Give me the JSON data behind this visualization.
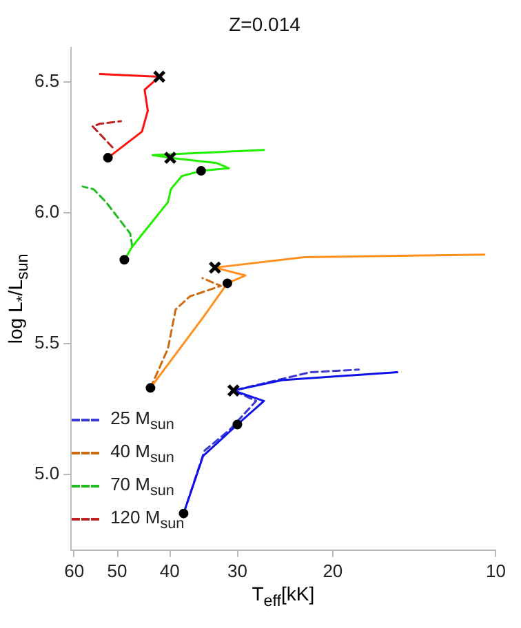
{
  "chart_data": {
    "type": "line",
    "title": "Z=0.014",
    "xlabel": "T$_{eff}$[kK]",
    "ylabel": "log L$_{*}$/L$_{sun}$",
    "log": "x",
    "xlim": [
      61,
      10
    ],
    "xticks": [
      60,
      50,
      40,
      30,
      20,
      10
    ],
    "ylim": [
      4.71,
      6.63
    ],
    "yticks": [
      {
        "value": 5,
        "label": "5.0"
      },
      {
        "value": 5.5,
        "label": "5.5"
      },
      {
        "value": 6,
        "label": "6.0"
      },
      {
        "value": 6.5,
        "label": "6.5"
      }
    ],
    "grid": false,
    "legend": "bottom left",
    "marker": "none",
    "series": [
      {
        "type": "line",
        "color": "#1010e8",
        "line_style": "solid",
        "x": [
          37.7,
          34.7,
          30.0,
          26.8,
          30.5,
          24.8,
          15.2
        ],
        "values": [
          4.85,
          5.07,
          5.19,
          5.28,
          5.32,
          5.36,
          5.39
        ]
      },
      {
        "type": "line",
        "color": "#ff9020",
        "line_style": "solid",
        "x": [
          43.4,
          34.7,
          31.3,
          29.0,
          33.0,
          22.6,
          10.5
        ],
        "values": [
          5.33,
          5.6,
          5.73,
          5.76,
          5.79,
          5.83,
          5.84
        ]
      },
      {
        "type": "line",
        "color": "#22ee00",
        "line_style": "solid",
        "x": [
          48.5,
          46.9,
          40.3,
          39.8,
          38.0,
          35.0,
          31.1,
          32.8,
          39.9,
          43.0,
          26.8
        ],
        "values": [
          5.82,
          5.87,
          6.04,
          6.09,
          6.14,
          6.16,
          6.17,
          6.19,
          6.21,
          6.22,
          6.24
        ]
      },
      {
        "type": "line",
        "color": "#ff1010",
        "line_style": "solid",
        "x": [
          52.0,
          45.0,
          43.9,
          44.5,
          41.8,
          53.8
        ],
        "values": [
          6.21,
          6.31,
          6.39,
          6.47,
          6.52,
          6.53
        ]
      },
      {
        "type": "line",
        "name": "25 M$_{sun}$",
        "color": "#3a3ad0",
        "line_style": "dashed",
        "x": [
          37.7,
          34.5,
          31.0,
          27.7,
          30.5,
          22.0,
          17.9
        ],
        "values": [
          4.85,
          5.09,
          5.17,
          5.28,
          5.32,
          5.39,
          5.4
        ]
      },
      {
        "type": "line",
        "name": "40 M$_{sun}$",
        "color": "#cc6a10",
        "line_style": "dashed",
        "x": [
          43.4,
          40.3,
          39.0,
          36.7,
          32.2,
          34.8
        ],
        "values": [
          5.33,
          5.48,
          5.63,
          5.68,
          5.72,
          5.75
        ]
      },
      {
        "type": "line",
        "name": "70 M$_{sun}$",
        "color": "#22bb22",
        "line_style": "dashed",
        "x": [
          46.9,
          47.3,
          52.4,
          55.3,
          57.9
        ],
        "values": [
          5.87,
          5.92,
          6.04,
          6.09,
          6.1
        ]
      },
      {
        "type": "line",
        "name": "120 M$_{sun}$",
        "color": "#bb2222",
        "line_style": "dashed",
        "x": [
          51.0,
          55.5,
          53.8,
          49.2
        ],
        "values": [
          6.25,
          6.33,
          6.34,
          6.35
        ]
      },
      {
        "type": "scatter",
        "marker": "circle",
        "color": "#000000",
        "x": [
          37.7,
          30.0,
          43.4,
          31.3,
          48.5,
          35.0,
          52.0
        ],
        "values": [
          4.85,
          5.19,
          5.33,
          5.73,
          5.82,
          6.16,
          6.21
        ]
      },
      {
        "type": "scatter",
        "marker": "cross",
        "color": "#000000",
        "x": [
          30.5,
          33.0,
          39.9,
          41.8
        ],
        "values": [
          5.32,
          5.79,
          6.21,
          6.52
        ]
      }
    ]
  }
}
